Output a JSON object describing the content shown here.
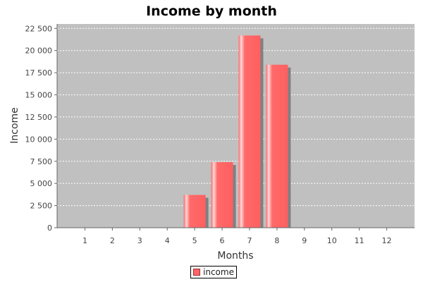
{
  "chart_data": {
    "type": "bar",
    "title": "Income by month",
    "xlabel": "Months",
    "ylabel": "Income",
    "categories": [
      "1",
      "2",
      "3",
      "4",
      "5",
      "6",
      "7",
      "8",
      "9",
      "10",
      "11",
      "12"
    ],
    "series": [
      {
        "name": "income",
        "values": [
          0,
          0,
          0,
          0,
          3700,
          7400,
          21700,
          18400,
          0,
          0,
          0,
          0
        ]
      }
    ],
    "ylim": [
      0,
      23000
    ],
    "yticks": [
      0,
      2500,
      5000,
      7500,
      10000,
      12500,
      15000,
      17500,
      20000,
      22500
    ],
    "ytick_labels": [
      "0",
      "2 500",
      "5 000",
      "7 500",
      "10 000",
      "12 500",
      "15 000",
      "17 500",
      "20 000",
      "22 500"
    ],
    "grid": true,
    "legend_position": "bottom-center",
    "colors": {
      "bar": "#ff6666",
      "bar_highlight": "#ffd0d0",
      "bar_shadow": "#808080",
      "plot_background": "#c0c0c0",
      "gridline": "#ffffff"
    }
  }
}
